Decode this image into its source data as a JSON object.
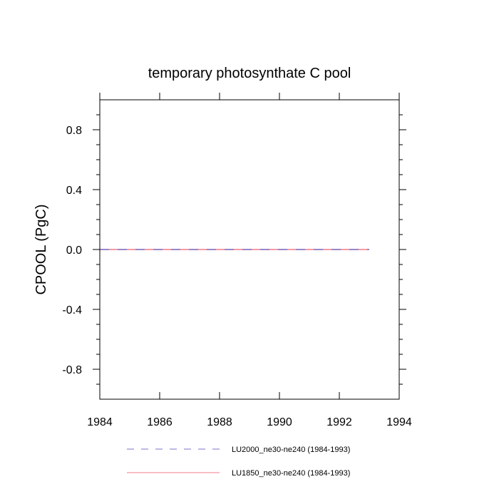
{
  "chart_data": {
    "type": "line",
    "title": "temporary photosynthate C pool",
    "xlabel": "",
    "ylabel": "CPOOL  (PgC)",
    "xlim": [
      1984,
      1994
    ],
    "ylim": [
      -1.0,
      1.0
    ],
    "xticks": [
      1984,
      1986,
      1988,
      1990,
      1992,
      1994
    ],
    "xtick_labels": [
      "1984",
      "1986",
      "1988",
      "1990",
      "1992",
      "1994"
    ],
    "yticks": [
      -0.8,
      -0.4,
      0.0,
      0.4,
      0.8
    ],
    "ytick_labels": [
      "-0.8",
      "-0.4",
      "0.0",
      "0.4",
      "0.8"
    ],
    "grid": false,
    "legend_position": "bottom",
    "series": [
      {
        "name": "LU2000_ne30-ne240 (1984-1993)",
        "color": "#7b73c8",
        "dash": "dashed",
        "x": [
          1984,
          1985,
          1986,
          1987,
          1988,
          1989,
          1990,
          1991,
          1992,
          1993
        ],
        "y": [
          0,
          0,
          0,
          0,
          0,
          0,
          0,
          0,
          0,
          0
        ]
      },
      {
        "name": "LU1850_ne30-ne240 (1984-1993)",
        "color": "#f07a8a",
        "dash": "solid",
        "x": [
          1984,
          1985,
          1986,
          1987,
          1988,
          1989,
          1990,
          1991,
          1992,
          1993
        ],
        "y": [
          0,
          0,
          0,
          0,
          0,
          0,
          0,
          0,
          0,
          0
        ]
      }
    ]
  }
}
